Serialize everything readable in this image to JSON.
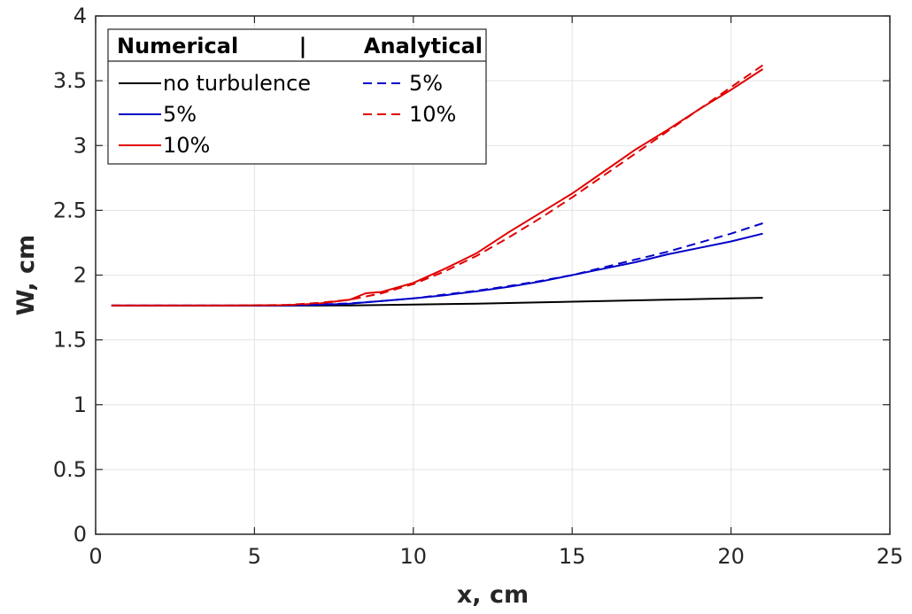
{
  "chart_data": {
    "type": "line",
    "xlabel": "x, cm",
    "ylabel": "W, cm",
    "xlim": [
      0,
      25
    ],
    "ylim": [
      0,
      4
    ],
    "xticks": [
      0,
      5,
      10,
      15,
      20,
      25
    ],
    "xtick_labels": [
      "0",
      "5",
      "10",
      "15",
      "20",
      "25"
    ],
    "yticks": [
      0,
      0.5,
      1,
      1.5,
      2,
      2.5,
      3,
      3.5,
      4
    ],
    "ytick_labels": [
      "0",
      "0.5",
      "1",
      "1.5",
      "2",
      "2.5",
      "3",
      "3.5",
      "4"
    ],
    "grid": true,
    "legend": {
      "placement": "top-left",
      "header_left": "Numerical",
      "header_sep": "|",
      "header_right": "Analytical"
    },
    "series": [
      {
        "name": "no turbulence",
        "group": "Numerical",
        "color": "#000000",
        "dash": "solid",
        "x": [
          0.5,
          2,
          4,
          6,
          7,
          8,
          10,
          12,
          14,
          16,
          18,
          20,
          21
        ],
        "y": [
          1.765,
          1.765,
          1.765,
          1.765,
          1.765,
          1.766,
          1.772,
          1.78,
          1.79,
          1.8,
          1.81,
          1.82,
          1.825
        ]
      },
      {
        "name": "5%",
        "group": "Numerical",
        "color": "#0000c8",
        "dash": "solid",
        "x": [
          0.5,
          2,
          4,
          6,
          7,
          8,
          9,
          10,
          11,
          12,
          13,
          14,
          15,
          16,
          17,
          18,
          19,
          20,
          21
        ],
        "y": [
          1.765,
          1.765,
          1.765,
          1.766,
          1.77,
          1.78,
          1.8,
          1.82,
          1.845,
          1.875,
          1.91,
          1.95,
          2.0,
          2.05,
          2.1,
          2.16,
          2.21,
          2.26,
          2.32
        ]
      },
      {
        "name": "10%",
        "group": "Numerical",
        "color": "#e00000",
        "dash": "solid",
        "x": [
          0.5,
          2,
          4,
          6,
          7,
          8,
          8.5,
          9,
          10,
          11,
          12,
          13,
          14,
          15,
          16,
          17,
          18,
          19,
          20,
          21
        ],
        "y": [
          1.765,
          1.765,
          1.765,
          1.768,
          1.78,
          1.81,
          1.86,
          1.87,
          1.94,
          2.05,
          2.17,
          2.33,
          2.48,
          2.63,
          2.8,
          2.97,
          3.12,
          3.28,
          3.43,
          3.59
        ]
      },
      {
        "name": "5%",
        "group": "Analytical",
        "color": "#0000c8",
        "dash": "dashed",
        "x": [
          0.5,
          2,
          4,
          6,
          7,
          8,
          9,
          10,
          11,
          12,
          13,
          14,
          15,
          16,
          17,
          18,
          19,
          20,
          21
        ],
        "y": [
          1.765,
          1.765,
          1.765,
          1.767,
          1.772,
          1.782,
          1.8,
          1.82,
          1.85,
          1.88,
          1.915,
          1.955,
          2.0,
          2.06,
          2.12,
          2.18,
          2.25,
          2.32,
          2.4
        ]
      },
      {
        "name": "10%",
        "group": "Analytical",
        "color": "#e00000",
        "dash": "dashed",
        "x": [
          0.5,
          2,
          4,
          6,
          7,
          8,
          9,
          10,
          11,
          12,
          13,
          14,
          15,
          16,
          17,
          18,
          19,
          20,
          21
        ],
        "y": [
          1.765,
          1.765,
          1.765,
          1.77,
          1.785,
          1.81,
          1.86,
          1.93,
          2.03,
          2.15,
          2.29,
          2.44,
          2.6,
          2.77,
          2.94,
          3.11,
          3.28,
          3.45,
          3.62
        ]
      }
    ]
  }
}
